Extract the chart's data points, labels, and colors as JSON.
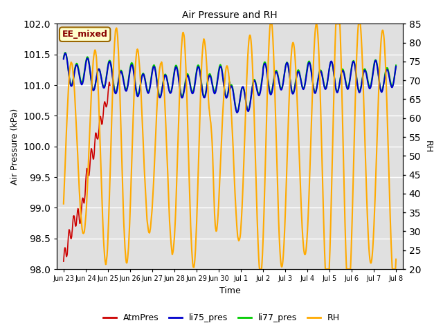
{
  "title": "Air Pressure and RH",
  "xlabel": "Time",
  "ylabel_left": "Air Pressure (kPa)",
  "ylabel_right": "RH",
  "annotation": "EE_mixed",
  "ylim_left": [
    98.0,
    102.0
  ],
  "ylim_right": [
    20,
    85
  ],
  "yticks_left": [
    98.0,
    98.5,
    99.0,
    99.5,
    100.0,
    100.5,
    101.0,
    101.5,
    102.0
  ],
  "yticks_right": [
    20,
    25,
    30,
    35,
    40,
    45,
    50,
    55,
    60,
    65,
    70,
    75,
    80,
    85
  ],
  "colors": {
    "AtmPres": "#cc0000",
    "li75_pres": "#0000cc",
    "li77_pres": "#00cc00",
    "RH": "#ffaa00",
    "bg_gray": "#e0e0e0",
    "annotation_bg": "#ffffcc",
    "annotation_border": "#996600",
    "annotation_text": "#880000"
  },
  "linewidths": {
    "AtmPres": 1.2,
    "li75_pres": 1.5,
    "li77_pres": 1.5,
    "RH": 1.5
  },
  "xtick_days": [
    0,
    1,
    2,
    3,
    4,
    5,
    6,
    7,
    8,
    9,
    10,
    11,
    12,
    13,
    14,
    15
  ],
  "xtick_labels": [
    "Jun 23",
    "Jun 24",
    "Jun 25",
    "Jun 26",
    "Jun 27",
    "Jun 28",
    "Jun 29",
    "Jun 30",
    "Jul 1",
    "Jul 2",
    "Jul 3",
    "Jul 4",
    "Jul 5",
    "Jul 6",
    "Jul 7",
    "Jul 8"
  ]
}
